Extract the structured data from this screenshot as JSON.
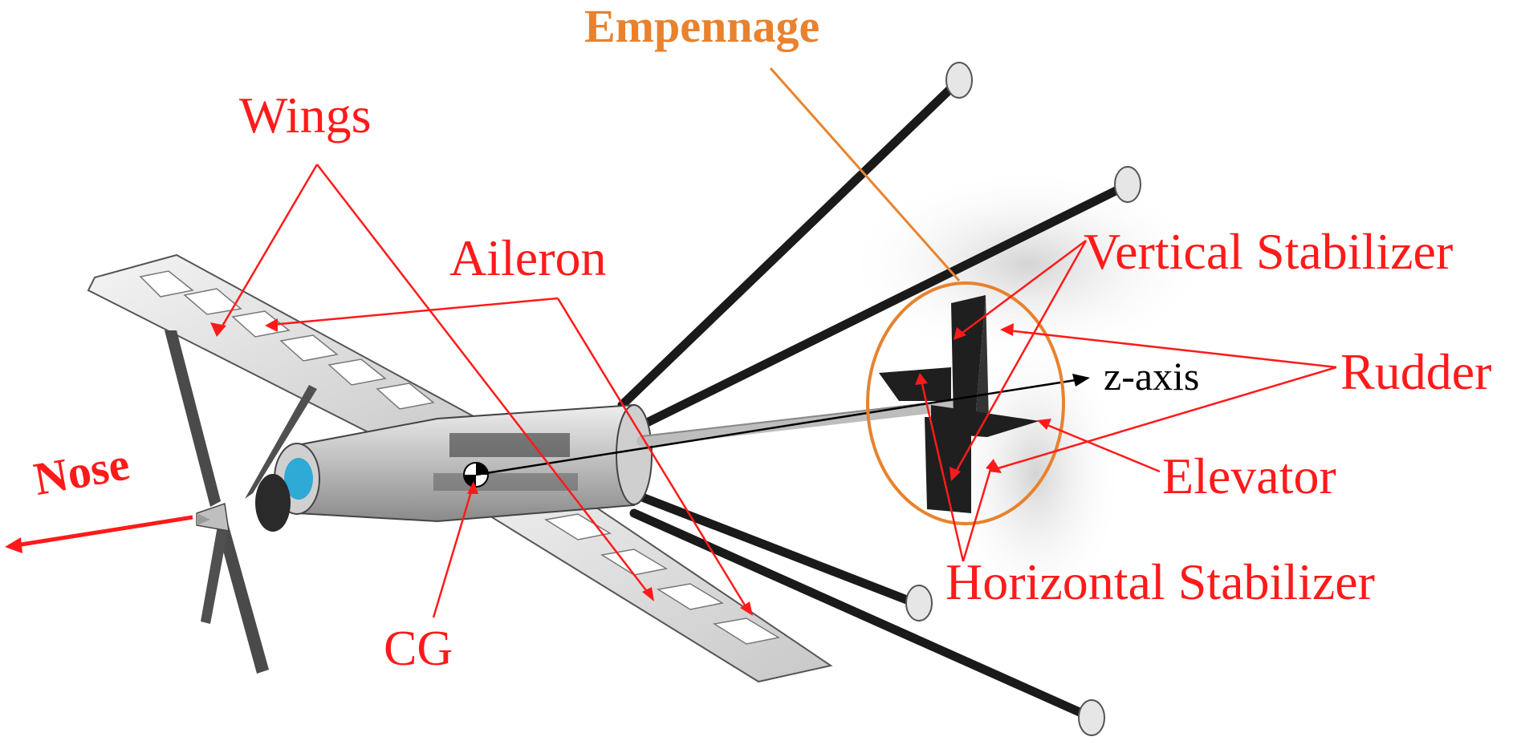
{
  "labels": {
    "empennage": "Empennage",
    "wings": "Wings",
    "aileron": "Aileron",
    "vertical_stabilizer": "Vertical Stabilizer",
    "rudder": "Rudder",
    "z_axis": "z-axis",
    "elevator": "Elevator",
    "horizontal_stabilizer": "Horizontal Stabilizer",
    "nose": "Nose",
    "cg": "CG"
  },
  "colors": {
    "label_red": "#ff1a1a",
    "empennage_orange": "#e8822e",
    "tail_surface": "#1f1f1f",
    "frame_grey": "#d9d9d9"
  }
}
